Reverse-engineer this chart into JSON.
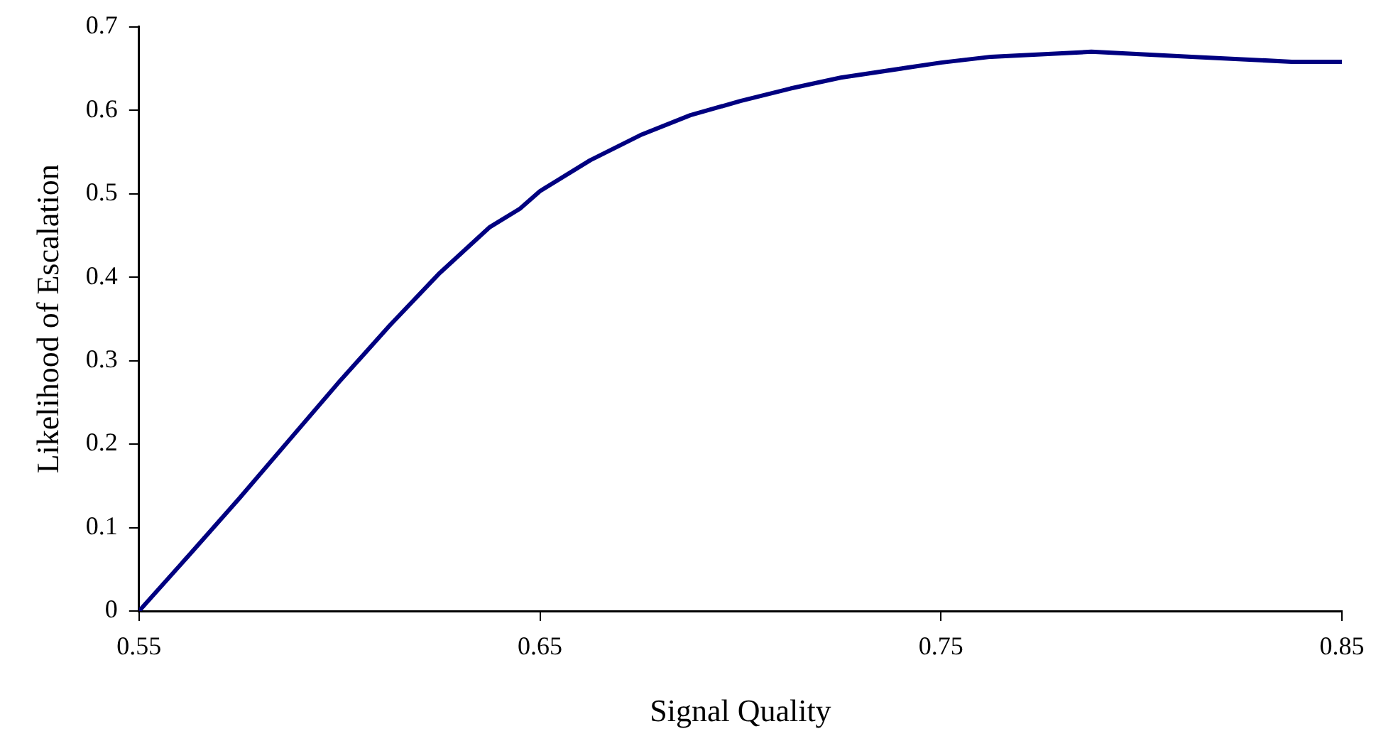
{
  "chart_data": {
    "type": "line",
    "xlabel": "Signal Quality",
    "ylabel": "Likelihood of Escalation",
    "x": [
      0.55,
      0.5625,
      0.575,
      0.5875,
      0.6,
      0.6125,
      0.625,
      0.6375,
      0.645,
      0.65,
      0.6625,
      0.675,
      0.6875,
      0.7,
      0.7125,
      0.725,
      0.75,
      0.7625,
      0.7875,
      0.8125,
      0.8375,
      0.85
    ],
    "series": [
      {
        "color": "#000080",
        "values": [
          0,
          0.067,
          0.135,
          0.205,
          0.275,
          0.342,
          0.405,
          0.46,
          0.482,
          0.503,
          0.54,
          0.57,
          0.594,
          0.611,
          0.626,
          0.639,
          0.657,
          0.664,
          0.67,
          0.664,
          0.658,
          0.658
        ]
      }
    ],
    "xlim": [
      0.55,
      0.85
    ],
    "xticks": [
      0.55,
      0.65,
      0.75,
      0.85
    ],
    "ylim": [
      0,
      0.7
    ],
    "yticks": [
      0,
      0.1,
      0.2,
      0.3,
      0.4,
      0.5,
      0.6,
      0.7
    ],
    "grid": false,
    "legend": false,
    "marker": "none",
    "line_style": "solid"
  }
}
